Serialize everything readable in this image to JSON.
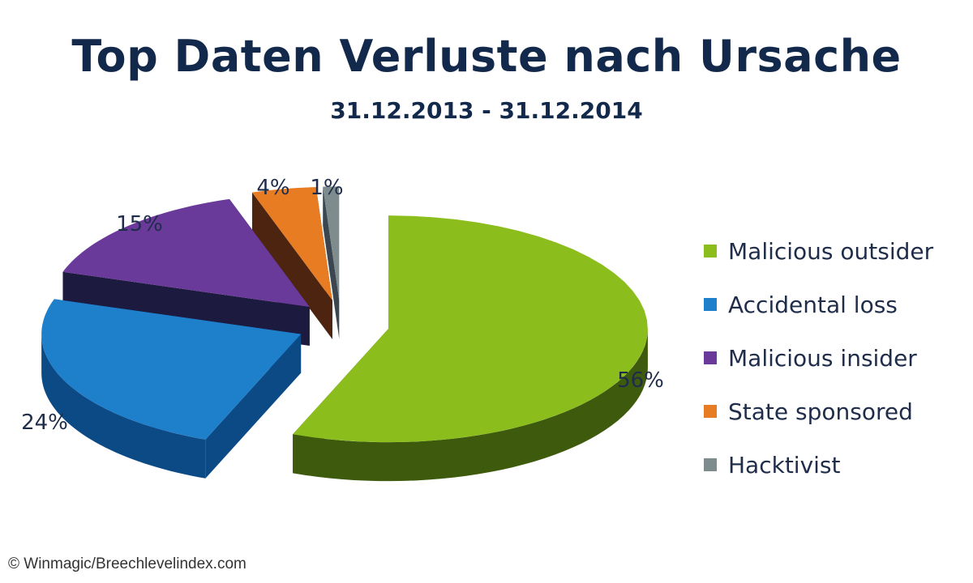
{
  "chart_data": {
    "type": "pie",
    "title": "Top Daten Verluste nach Ursache",
    "subtitle": "31.12.2013  -  31.12.2014",
    "categories": [
      "Malicious outsider",
      "Accidental loss",
      "Malicious insider",
      "State sponsored",
      "Hacktivist"
    ],
    "values": [
      56,
      24,
      15,
      4,
      1
    ],
    "labels": [
      "56%",
      "24%",
      "15%",
      "4%",
      "1%"
    ],
    "colors": [
      "#8bbd1c",
      "#1e7fcb",
      "#6a3a9a",
      "#e87c23",
      "#7f8c8d"
    ],
    "side_colors": [
      "#3e5b0d",
      "#0c4a86",
      "#1d1a3f",
      "#4d2410",
      "#3c4650"
    ],
    "legend_position": "right"
  },
  "credit": "© Winmagic/Breechlevelindex.com"
}
